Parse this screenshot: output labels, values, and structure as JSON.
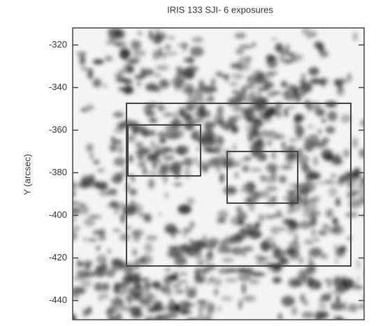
{
  "chart_data": {
    "type": "image",
    "title": "IRIS 133 SJI- 6 exposures",
    "y_label": "Y (arcsec)",
    "ylim": [
      -449,
      -312
    ],
    "yticks": [
      -320,
      -340,
      -360,
      -380,
      -400,
      -420,
      -440
    ]
  }
}
